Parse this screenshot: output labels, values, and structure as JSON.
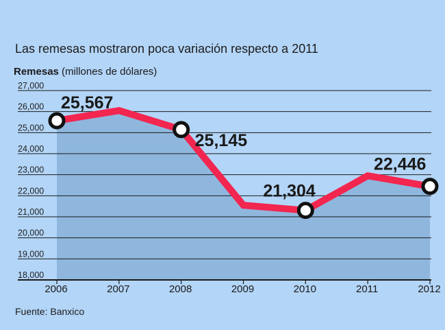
{
  "chart_data": {
    "type": "area",
    "title": "Las remesas mostraron poca variación respecto a 2011",
    "ylabel_bold": "Remesas",
    "ylabel_rest": " (millones de dólares)",
    "source": "Fuente: Banxico",
    "x": [
      "2006",
      "2007",
      "2008",
      "2009",
      "2010",
      "2011",
      "2012"
    ],
    "values": [
      25567,
      26050,
      25145,
      21550,
      21304,
      22950,
      22446
    ],
    "ylim": [
      18000,
      27000
    ],
    "yticks": [
      "18,000",
      "19,000",
      "20,000",
      "21,000",
      "22,000",
      "23,000",
      "24,000",
      "25,000",
      "26,000",
      "27,000"
    ],
    "grid": true,
    "labeled_points": [
      {
        "index": 0,
        "label": "25,567"
      },
      {
        "index": 2,
        "label": "25,145"
      },
      {
        "index": 4,
        "label": "21,304"
      },
      {
        "index": 6,
        "label": "22,446"
      }
    ],
    "colors": {
      "background": "#b3d5f7",
      "area_fill": "#8fb7de",
      "line": "#f2264f",
      "marker_fill": "#ffffff",
      "marker_stroke": "#111111",
      "grid": "#1a1a1a"
    }
  }
}
